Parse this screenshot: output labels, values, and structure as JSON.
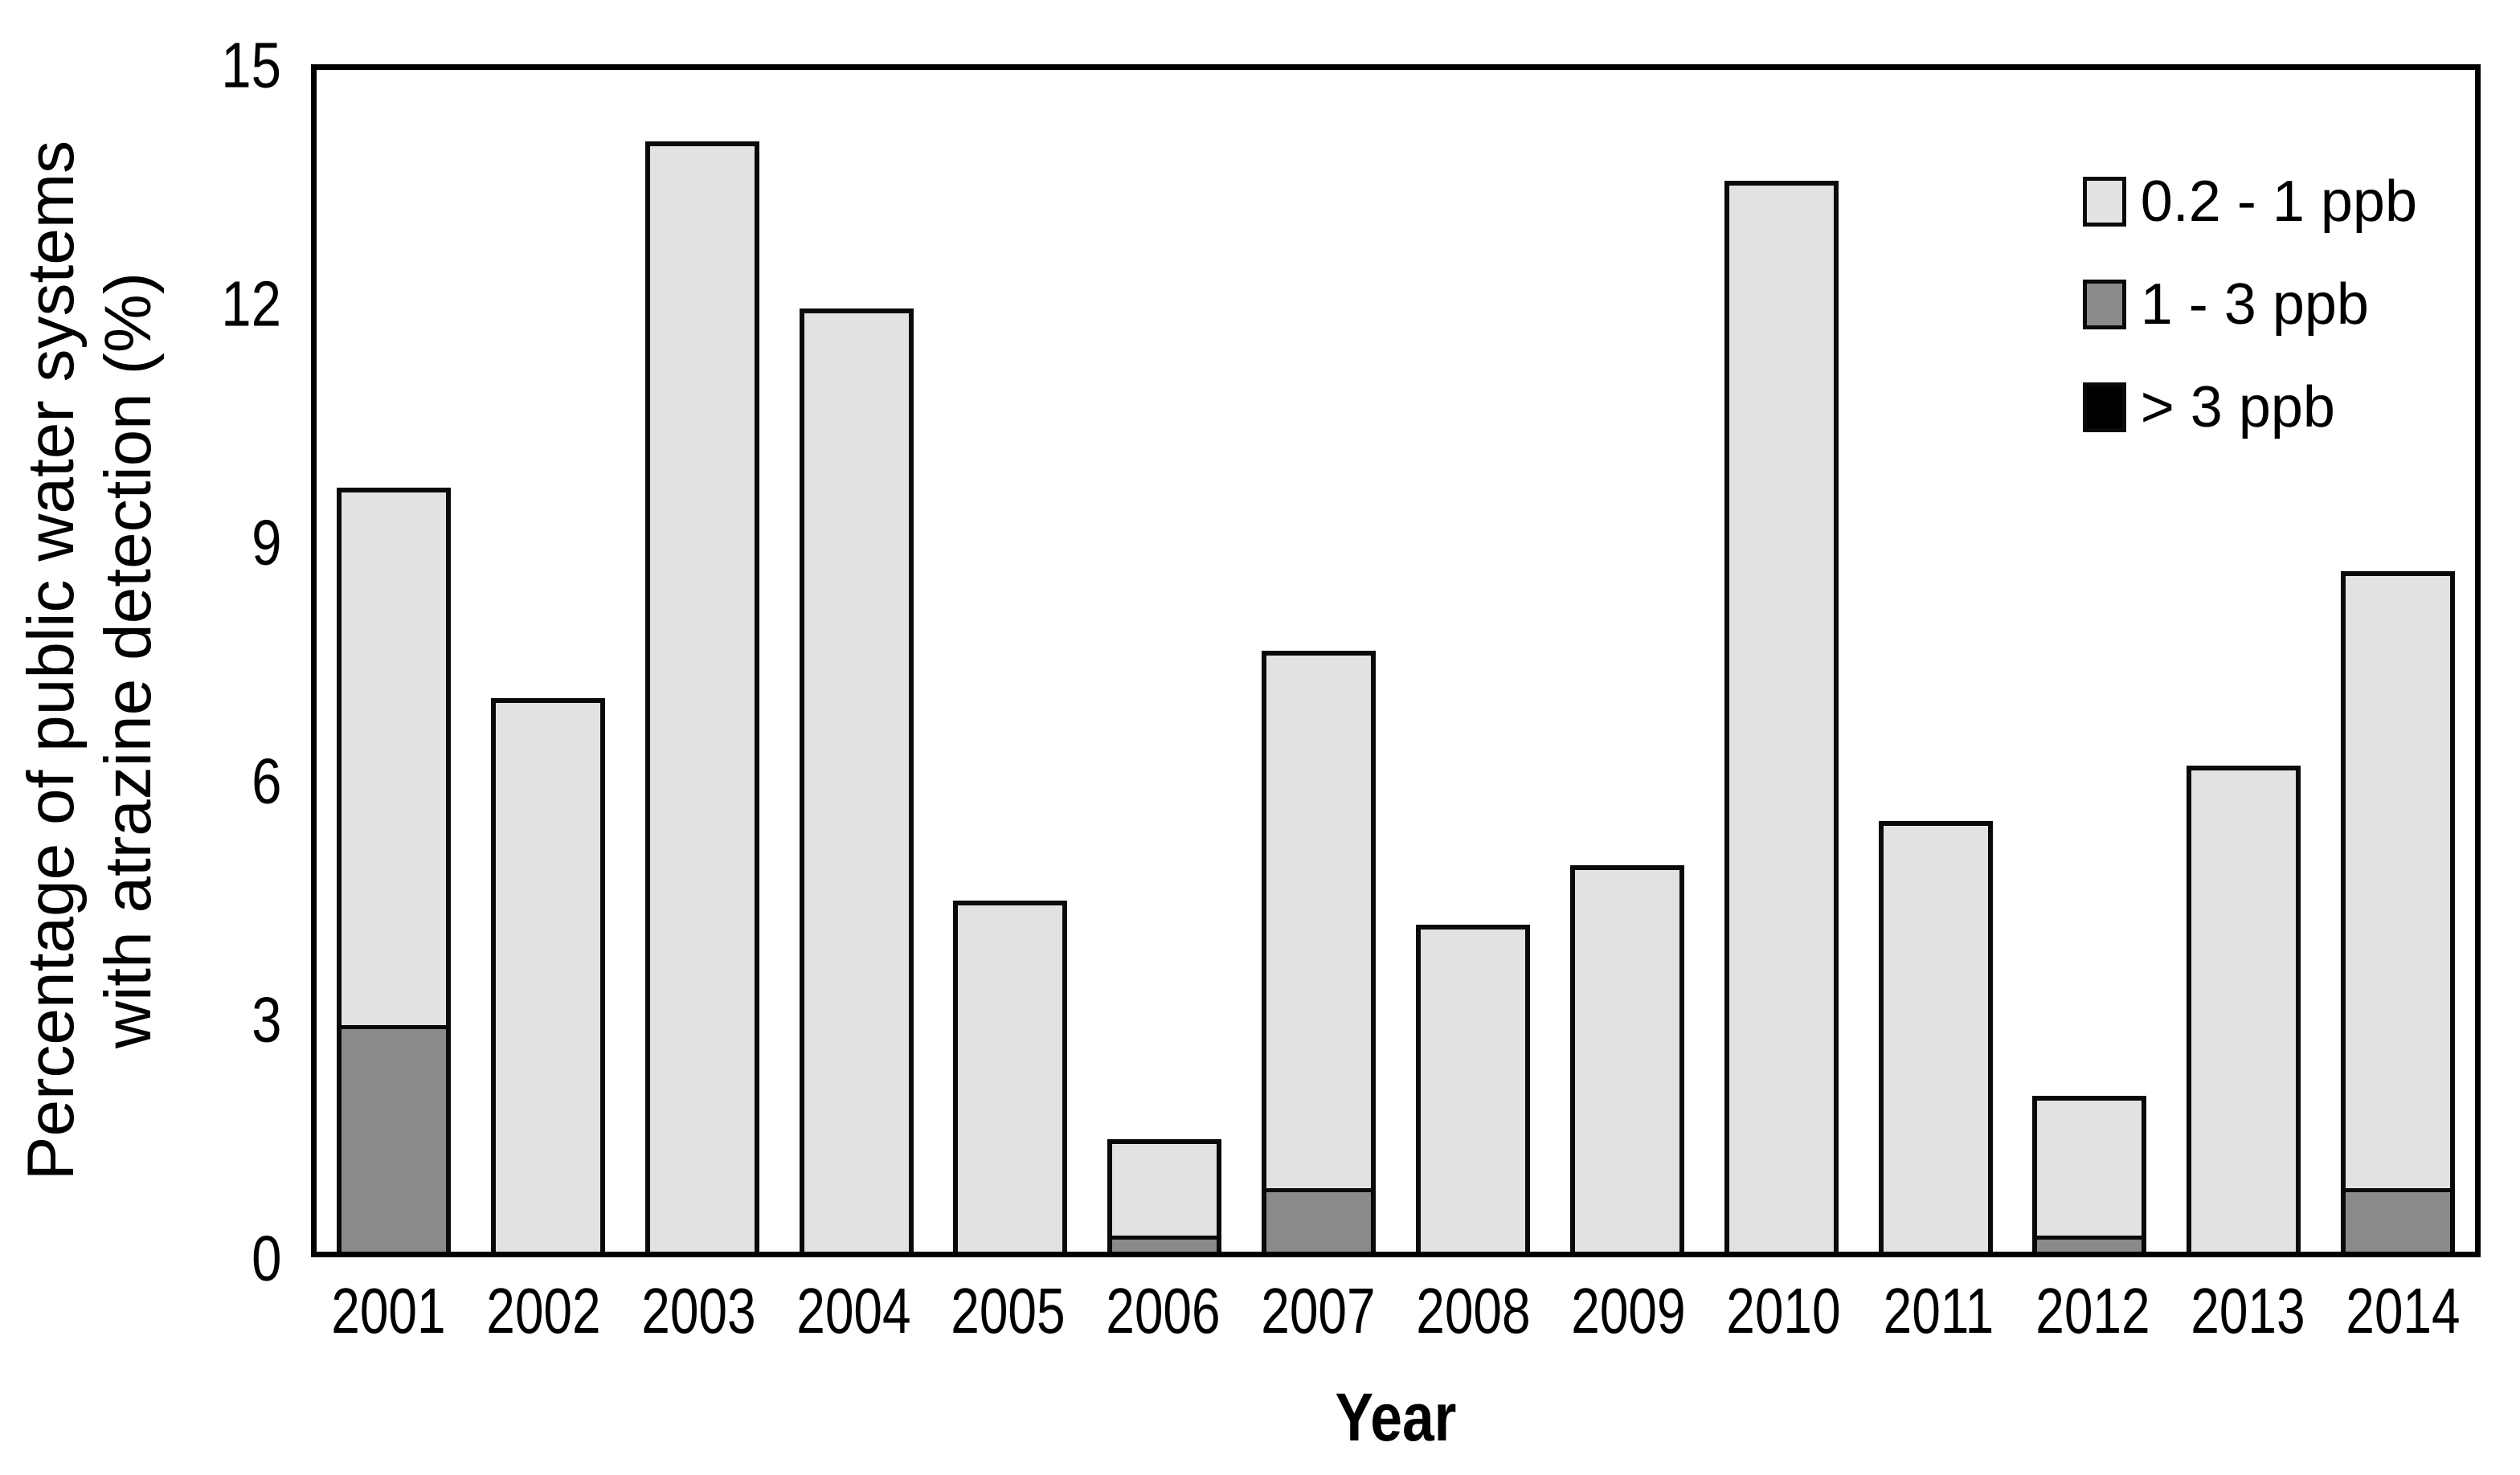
{
  "chart_data": {
    "type": "bar",
    "stacked": true,
    "title": "",
    "xlabel": "Year",
    "ylabel_lines": [
      "Percentage of public water systems",
      "with atrazine detection (%)"
    ],
    "ylabel": "Percentage of public water systems with atrazine detection (%)",
    "ylim": [
      0,
      15
    ],
    "yticks": [
      0,
      3,
      6,
      9,
      12,
      15
    ],
    "grid": false,
    "legend_position": "top-right",
    "stack_order_bottom_to_top": [
      "> 3 ppb",
      "1 - 3 ppb",
      "0.2 - 1 ppb"
    ],
    "categories": [
      "2001",
      "2002",
      "2003",
      "2004",
      "2005",
      "2006",
      "2007",
      "2008",
      "2009",
      "2010",
      "2011",
      "2012",
      "2013",
      "2014"
    ],
    "series": [
      {
        "name": "0.2 - 1 ppb",
        "color": "#e2e2e2",
        "values": [
          6.7,
          6.9,
          13.9,
          11.8,
          4.35,
          1.15,
          6.7,
          4.05,
          4.8,
          13.4,
          5.35,
          1.7,
          6.05,
          7.7
        ]
      },
      {
        "name": "1 - 3 ppb",
        "color": "#8a8a8a",
        "values": [
          2.85,
          0,
          0,
          0,
          0,
          0.2,
          0.8,
          0,
          0,
          0,
          0,
          0.2,
          0,
          0.8
        ]
      },
      {
        "name": "> 3 ppb",
        "color": "#000000",
        "values": [
          0,
          0,
          0,
          0,
          0,
          0,
          0,
          0,
          0,
          0,
          0,
          0,
          0,
          0
        ]
      }
    ],
    "stacked_totals": [
      9.55,
      6.9,
      13.9,
      11.8,
      4.35,
      1.35,
      7.5,
      4.05,
      4.8,
      13.4,
      5.35,
      1.9,
      6.05,
      8.5
    ]
  },
  "colors": {
    "bar_outline": "#0a0a0a",
    "frame": "#000000",
    "background": "#ffffff"
  }
}
